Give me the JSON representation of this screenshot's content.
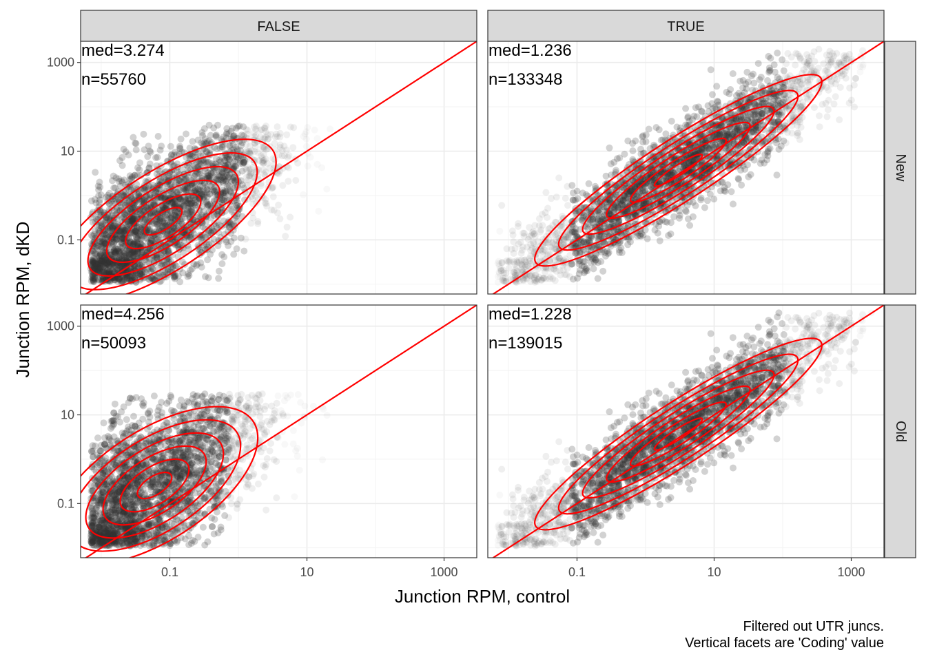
{
  "chart_data": {
    "type": "scatter",
    "facet_columns": [
      "FALSE",
      "TRUE"
    ],
    "facet_rows": [
      "New",
      "Old"
    ],
    "xlabel": "Junction RPM, control",
    "ylabel": "Junction RPM, dKD",
    "x_scale": "log10",
    "y_scale": "log10",
    "xlim": [
      0.005,
      3000
    ],
    "ylim": [
      0.006,
      3000
    ],
    "x_ticks": [
      0.1,
      10,
      1000
    ],
    "x_tick_labels": [
      "0.1",
      "10",
      "1000"
    ],
    "y_ticks": [
      0.1,
      10,
      1000
    ],
    "y_tick_labels": [
      "0.1",
      "10",
      "1000"
    ],
    "reference_line": {
      "type": "identity",
      "color": "#ff0000"
    },
    "density_contour_color": "#ff0000",
    "point_color": "#333333",
    "grid": true,
    "caption": [
      "Filtered out UTR juncs.",
      "Vertical facets are 'Coding' value"
    ],
    "panels": [
      {
        "col": "FALSE",
        "row": "New",
        "med_label": "med=3.274",
        "n_label": "n=55760",
        "cloud": {
          "x_range": [
            0.007,
            30
          ],
          "y_range": [
            0.011,
            40
          ],
          "center": [
            0.08,
            0.2
          ],
          "spread": [
            1.0,
            0.9
          ],
          "ratio_median": 3.274,
          "band": 0.8
        }
      },
      {
        "col": "TRUE",
        "row": "New",
        "med_label": "med=1.236",
        "n_label": "n=133348",
        "cloud": {
          "x_range": [
            0.007,
            2000
          ],
          "y_range": [
            0.011,
            2000
          ],
          "center": [
            3,
            4
          ],
          "spread": [
            1.3,
            1.3
          ],
          "ratio_median": 1.236,
          "band": 0.5
        }
      },
      {
        "col": "FALSE",
        "row": "Old",
        "med_label": "med=4.256",
        "n_label": "n=50093",
        "cloud": {
          "x_range": [
            0.007,
            20
          ],
          "y_range": [
            0.011,
            30
          ],
          "center": [
            0.06,
            0.3
          ],
          "spread": [
            0.9,
            1.0
          ],
          "ratio_median": 4.256,
          "band": 0.9
        }
      },
      {
        "col": "TRUE",
        "row": "Old",
        "med_label": "med=1.228",
        "n_label": "n=139015",
        "cloud": {
          "x_range": [
            0.007,
            2000
          ],
          "y_range": [
            0.011,
            2000
          ],
          "center": [
            3,
            4
          ],
          "spread": [
            1.3,
            1.3
          ],
          "ratio_median": 1.228,
          "band": 0.5
        }
      }
    ]
  }
}
